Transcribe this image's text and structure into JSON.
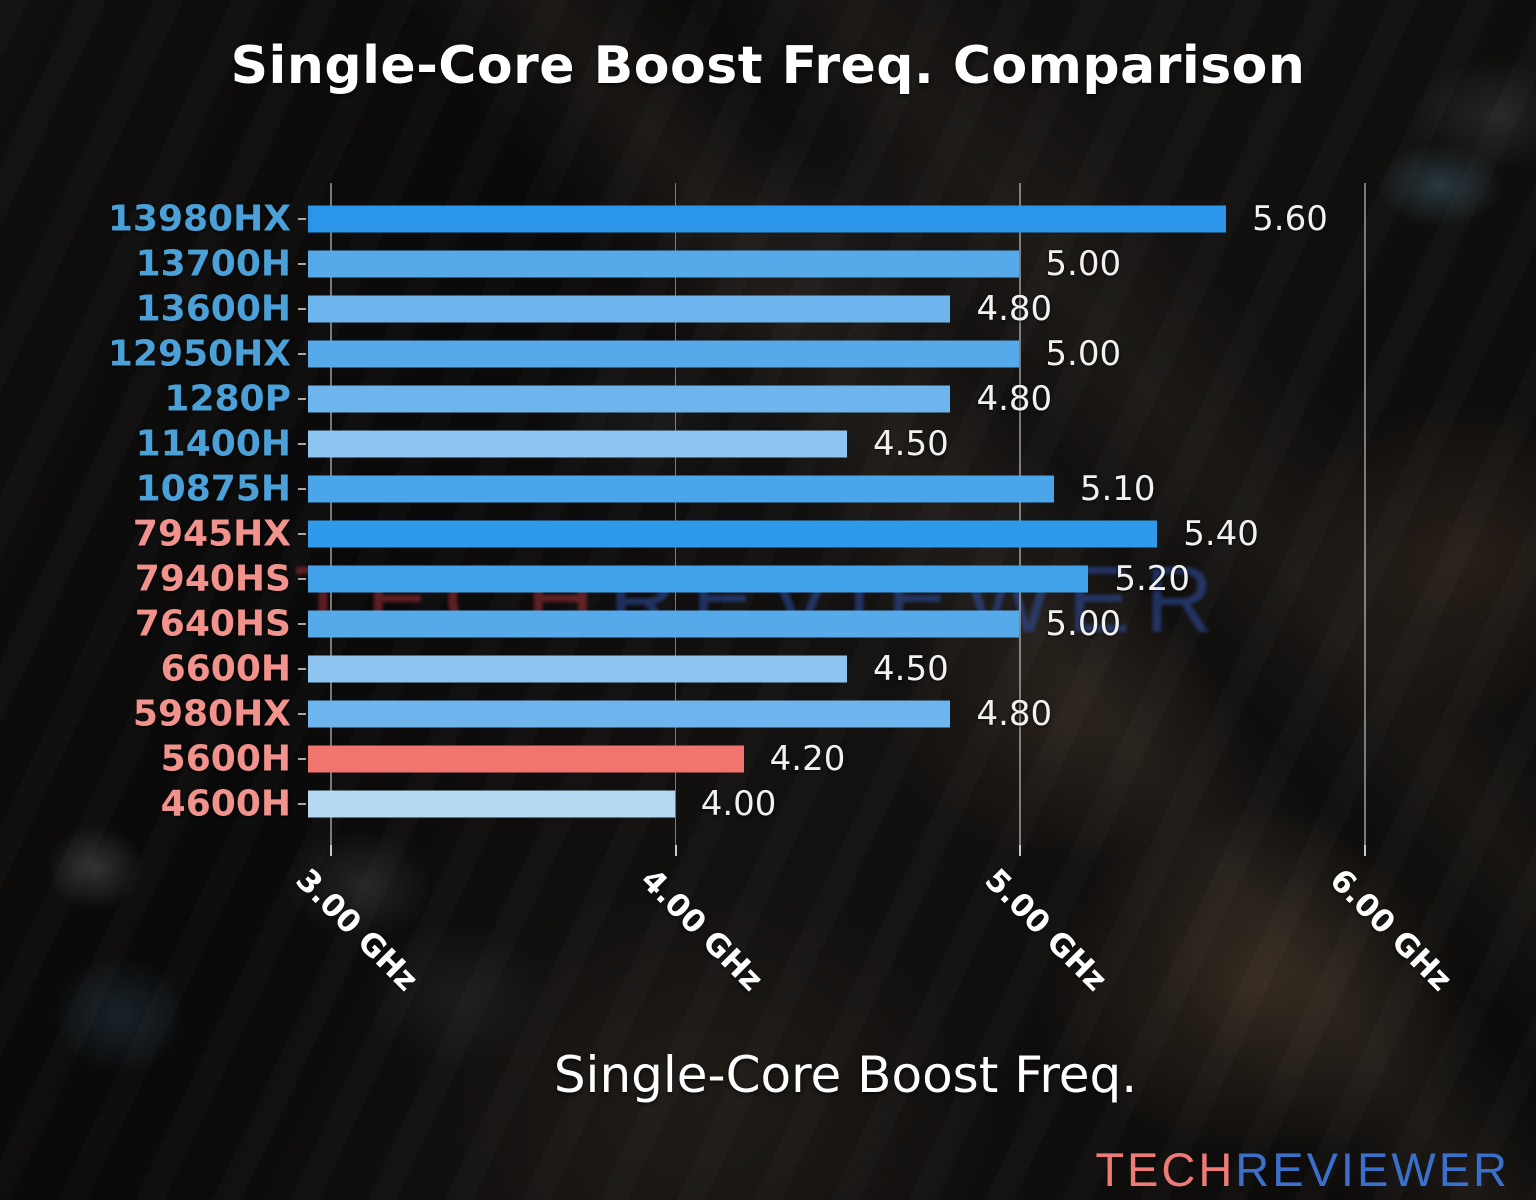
{
  "page": {
    "title": "Single-Core Boost Freq. Comparison"
  },
  "chart_data": {
    "type": "bar",
    "orientation": "horizontal",
    "title": "Single-Core Boost Freq. Comparison",
    "xlabel": "Single-Core Boost Freq.",
    "value_unit": "GHz",
    "xlim": [
      2.936,
      6.055
    ],
    "grid": true,
    "legend": false,
    "x_ticks": [
      {
        "value": 3.0,
        "label": "3.00 GHz"
      },
      {
        "value": 4.0,
        "label": "4.00 GHz"
      },
      {
        "value": 5.0,
        "label": "5.00 GHz"
      },
      {
        "value": 6.0,
        "label": "6.00 GHz"
      }
    ],
    "bars": [
      {
        "category": "13980HX",
        "value": 5.6,
        "value_label": "5.60",
        "bar_color": "#2b95ea",
        "category_color": "#4ba0d8"
      },
      {
        "category": "13700H",
        "value": 5.0,
        "value_label": "5.00",
        "bar_color": "#57aae9",
        "category_color": "#4ba0d8"
      },
      {
        "category": "13600H",
        "value": 4.8,
        "value_label": "4.80",
        "bar_color": "#6db5ec",
        "category_color": "#4ba0d8"
      },
      {
        "category": "12950HX",
        "value": 5.0,
        "value_label": "5.00",
        "bar_color": "#57aae9",
        "category_color": "#4ba0d8"
      },
      {
        "category": "1280P",
        "value": 4.8,
        "value_label": "4.80",
        "bar_color": "#6db5ec",
        "category_color": "#4ba0d8"
      },
      {
        "category": "11400H",
        "value": 4.5,
        "value_label": "4.50",
        "bar_color": "#8ec5f0",
        "category_color": "#4ba0d8"
      },
      {
        "category": "10875H",
        "value": 5.1,
        "value_label": "5.10",
        "bar_color": "#4ba5e9",
        "category_color": "#4ba0d8"
      },
      {
        "category": "7945HX",
        "value": 5.4,
        "value_label": "5.40",
        "bar_color": "#2f9aea",
        "category_color": "#f2928d"
      },
      {
        "category": "7940HS",
        "value": 5.2,
        "value_label": "5.20",
        "bar_color": "#41a1e9",
        "category_color": "#f2928d"
      },
      {
        "category": "7640HS",
        "value": 5.0,
        "value_label": "5.00",
        "bar_color": "#57aae9",
        "category_color": "#f2928d"
      },
      {
        "category": "6600H",
        "value": 4.5,
        "value_label": "4.50",
        "bar_color": "#8ec5f0",
        "category_color": "#f2928d"
      },
      {
        "category": "5980HX",
        "value": 4.8,
        "value_label": "4.80",
        "bar_color": "#6db5ec",
        "category_color": "#f2928d"
      },
      {
        "category": "5600H",
        "value": 4.2,
        "value_label": "4.20",
        "bar_color": "#f1746e",
        "category_color": "#f2928d"
      },
      {
        "category": "4600H",
        "value": 4.0,
        "value_label": "4.00",
        "bar_color": "#b5d9f2",
        "category_color": "#f2928d"
      }
    ]
  },
  "watermark": {
    "center_part1": "TECH",
    "center_part2": "REVIEWER",
    "center_color1": "rgba(178,52,58,0.50)",
    "center_color2": "rgba(48,84,178,0.50)"
  },
  "footer": {
    "logo_part1": "TECH",
    "logo_part2": "REVIEWER",
    "logo_color1": "#ee7b76",
    "logo_color2": "#3a70ca"
  }
}
